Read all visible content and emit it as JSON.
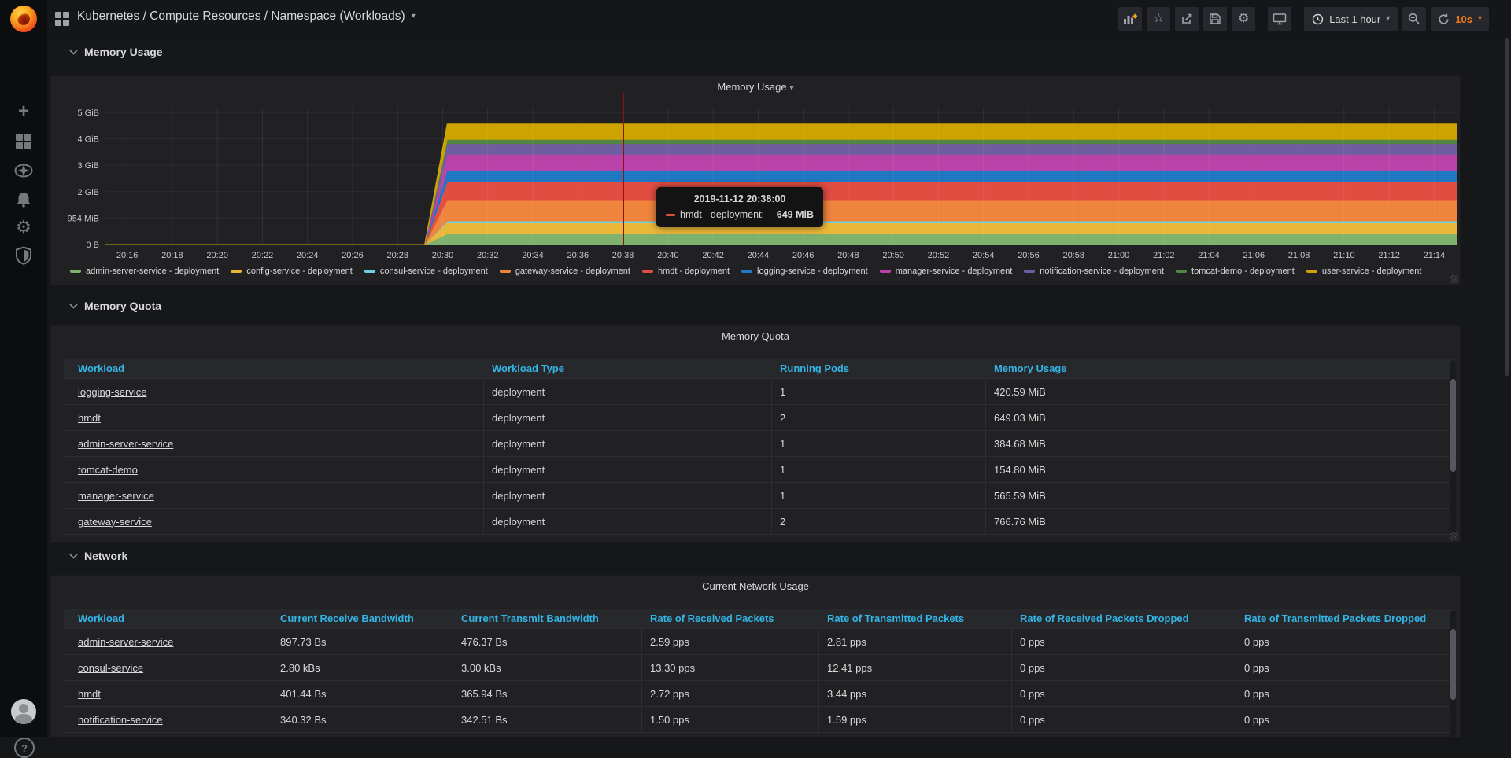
{
  "nav": {
    "title": "Kubernetes / Compute Resources / Namespace (Workloads)",
    "time_range_label": "Last 1 hour",
    "refresh_label": "10s",
    "icons": [
      "apps-grid",
      "add-panel",
      "star",
      "share",
      "save",
      "settings",
      "cycle-view-mode",
      "clock",
      "zoom-out",
      "refresh"
    ]
  },
  "sidebar": {
    "icons": [
      "plus",
      "dashboards-grid",
      "explore-compass",
      "alerting-bell",
      "configuration-gear",
      "server-admin-shield",
      "user-avatar",
      "help"
    ]
  },
  "sections": [
    "Memory Usage",
    "Memory Quota",
    "Network"
  ],
  "memory_usage_panel": {
    "title": "Memory Usage"
  },
  "chart_data": {
    "type": "area",
    "stacked": true,
    "title": "Memory Usage",
    "x_start": "20:15",
    "x_range_minutes": 60,
    "x_ticks": [
      "20:16",
      "20:18",
      "20:20",
      "20:22",
      "20:24",
      "20:26",
      "20:28",
      "20:30",
      "20:32",
      "20:34",
      "20:36",
      "20:38",
      "20:40",
      "20:42",
      "20:44",
      "20:46",
      "20:48",
      "20:50",
      "20:52",
      "20:54",
      "20:56",
      "20:58",
      "21:00",
      "21:02",
      "21:04",
      "21:06",
      "21:08",
      "21:10",
      "21:12",
      "21:14"
    ],
    "y_ticks": [
      "5 GiB",
      "4 GiB",
      "3 GiB",
      "2 GiB",
      "954 MiB",
      "0 B"
    ],
    "grid": true,
    "legend_position": "bottom",
    "behavior_note": "all series at 0 until 20:29, ramp up by 20:30, then constant to right edge",
    "ramp": {
      "start_min": 14.2,
      "end_min": 15.2
    },
    "series": [
      {
        "name": "admin-server-service - deployment",
        "color": "#7EB26D",
        "steady_mib": 385
      },
      {
        "name": "config-service - deployment",
        "color": "#EAB839",
        "steady_mib": 420
      },
      {
        "name": "consul-service - deployment",
        "color": "#6ED0E0",
        "steady_mib": 45
      },
      {
        "name": "gateway-service - deployment",
        "color": "#EF843C",
        "steady_mib": 767
      },
      {
        "name": "hmdt - deployment",
        "color": "#E24D42",
        "steady_mib": 649
      },
      {
        "name": "logging-service - deployment",
        "color": "#1F78C1",
        "steady_mib": 421
      },
      {
        "name": "manager-service - deployment",
        "color": "#BA43A9",
        "steady_mib": 566
      },
      {
        "name": "notification-service - deployment",
        "color": "#705DA0",
        "steady_mib": 390
      },
      {
        "name": "tomcat-demo - deployment",
        "color": "#508642",
        "steady_mib": 155
      },
      {
        "name": "user-service - deployment",
        "color": "#CCA300",
        "steady_mib": 550
      }
    ],
    "crosshair_time": "20:38",
    "tooltip": {
      "time": "2019-11-12 20:38:00",
      "series": "hmdt - deployment:",
      "value": "649 MiB",
      "marker_color": "#E24D42"
    }
  },
  "memory_quota": {
    "panel_title": "Memory Quota",
    "columns": [
      "Workload",
      "Workload Type",
      "Running Pods",
      "Memory Usage"
    ],
    "rows": [
      [
        "logging-service",
        "deployment",
        "1",
        "420.59 MiB"
      ],
      [
        "hmdt",
        "deployment",
        "2",
        "649.03 MiB"
      ],
      [
        "admin-server-service",
        "deployment",
        "1",
        "384.68 MiB"
      ],
      [
        "tomcat-demo",
        "deployment",
        "1",
        "154.80 MiB"
      ],
      [
        "manager-service",
        "deployment",
        "1",
        "565.59 MiB"
      ],
      [
        "gateway-service",
        "deployment",
        "2",
        "766.76 MiB"
      ]
    ]
  },
  "network": {
    "panel_title": "Current Network Usage",
    "columns": [
      "Workload",
      "Current Receive Bandwidth",
      "Current Transmit Bandwidth",
      "Rate of Received Packets",
      "Rate of Transmitted Packets",
      "Rate of Received Packets Dropped",
      "Rate of Transmitted Packets Dropped"
    ],
    "rows": [
      [
        "admin-server-service",
        "897.73 Bs",
        "476.37 Bs",
        "2.59 pps",
        "2.81 pps",
        "0 pps",
        "0 pps"
      ],
      [
        "consul-service",
        "2.80 kBs",
        "3.00 kBs",
        "13.30 pps",
        "12.41 pps",
        "0 pps",
        "0 pps"
      ],
      [
        "hmdt",
        "401.44 Bs",
        "365.94 Bs",
        "2.72 pps",
        "3.44 pps",
        "0 pps",
        "0 pps"
      ],
      [
        "notification-service",
        "340.32 Bs",
        "342.51 Bs",
        "1.50 pps",
        "1.59 pps",
        "0 pps",
        "0 pps"
      ]
    ]
  },
  "colors": {
    "page_bg": "#161719",
    "panel_bg": "#212124",
    "header_link": "#33b5e5",
    "accent_orange": "#eb7b18",
    "crosshair_red": "#941010"
  }
}
